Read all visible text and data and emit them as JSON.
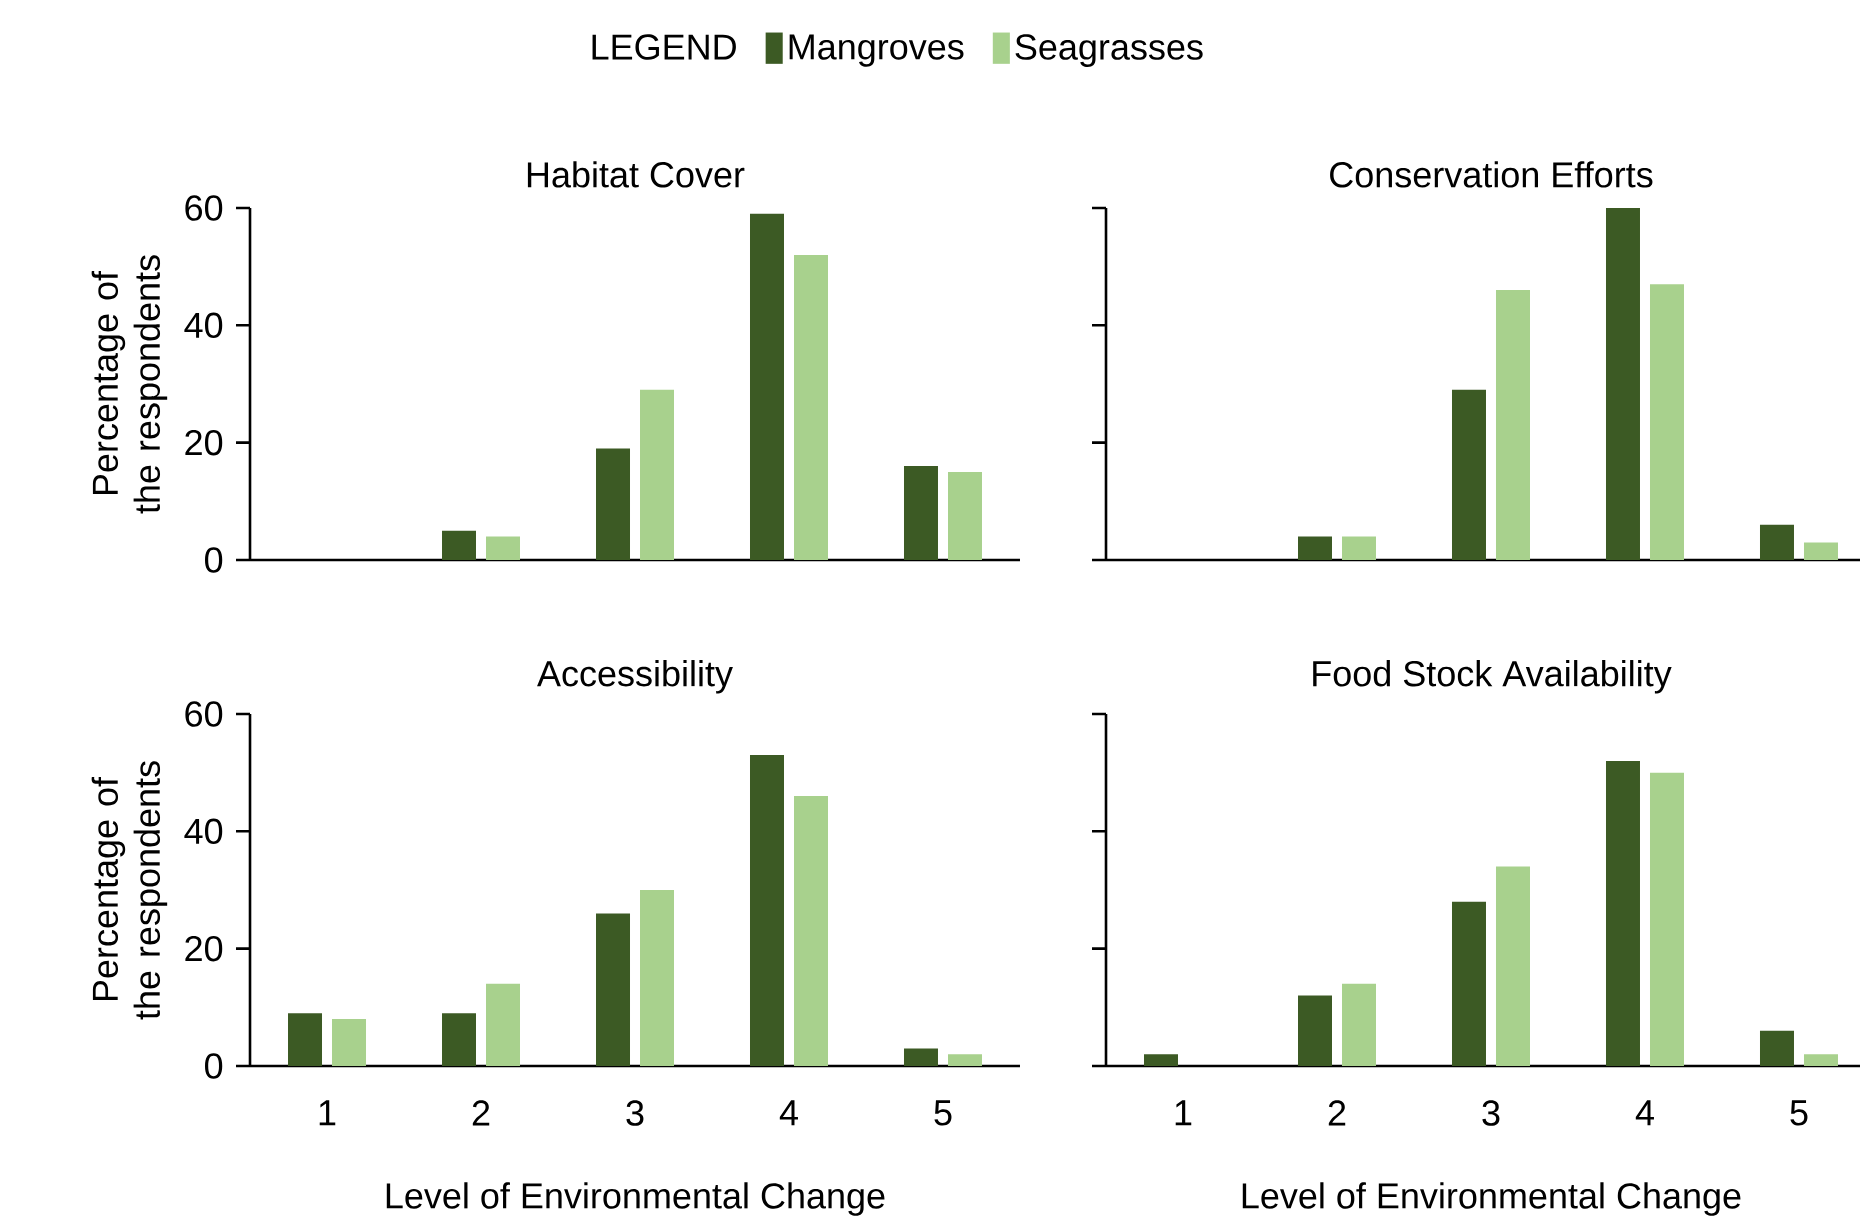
{
  "chart_data": [
    {
      "type": "bar",
      "title": "Habitat Cover",
      "ylabel": "Percentage of the respondents",
      "legend_title": "LEGEND",
      "legend": "top",
      "categories": [
        "1",
        "2",
        "3",
        "4",
        "5"
      ],
      "ylim": [
        0,
        60
      ],
      "yticks": [
        0,
        20,
        40,
        60
      ],
      "tick_labels": "y",
      "series": [
        {
          "name": "Mangroves",
          "color": "#3c5a24",
          "values": [
            0,
            5,
            19,
            59,
            16
          ]
        },
        {
          "name": "Seagrasses",
          "color": "#a8d18d",
          "values": [
            0,
            4,
            29,
            52,
            15
          ]
        }
      ]
    },
    {
      "type": "bar",
      "title": "Conservation Efforts",
      "categories": [
        "1",
        "2",
        "3",
        "4",
        "5"
      ],
      "ylim": [
        0,
        60
      ],
      "yticks": [
        0,
        20,
        40,
        60
      ],
      "tick_labels": false,
      "series": [
        {
          "color": "#3c5a24",
          "values": [
            0,
            4,
            29,
            60,
            6
          ]
        },
        {
          "color": "#a8d18d",
          "values": [
            0,
            4,
            46,
            47,
            3
          ]
        }
      ]
    },
    {
      "type": "bar",
      "title": "Accessibility",
      "ylabel": "Percentage of the respondents",
      "xlabel": "Level of Environmental Change",
      "categories": [
        "1",
        "2",
        "3",
        "4",
        "5"
      ],
      "ylim": [
        0,
        60
      ],
      "yticks": [
        0,
        20,
        40,
        60
      ],
      "series": [
        {
          "color": "#3c5a24",
          "values": [
            9,
            9,
            26,
            53,
            3
          ]
        },
        {
          "color": "#a8d18d",
          "values": [
            8,
            14,
            30,
            46,
            2
          ]
        }
      ]
    },
    {
      "type": "bar",
      "title": "Food Stock Availability",
      "xlabel": "Level of Environmental Change",
      "categories": [
        "1",
        "2",
        "3",
        "4",
        "5"
      ],
      "ylim": [
        0,
        60
      ],
      "yticks": [
        0,
        20,
        40,
        60
      ],
      "tick_labels": "x",
      "series": [
        {
          "color": "#3c5a24",
          "values": [
            2,
            12,
            28,
            52,
            6
          ]
        },
        {
          "color": "#a8d18d",
          "values": [
            0,
            14,
            34,
            50,
            2
          ]
        }
      ]
    }
  ]
}
